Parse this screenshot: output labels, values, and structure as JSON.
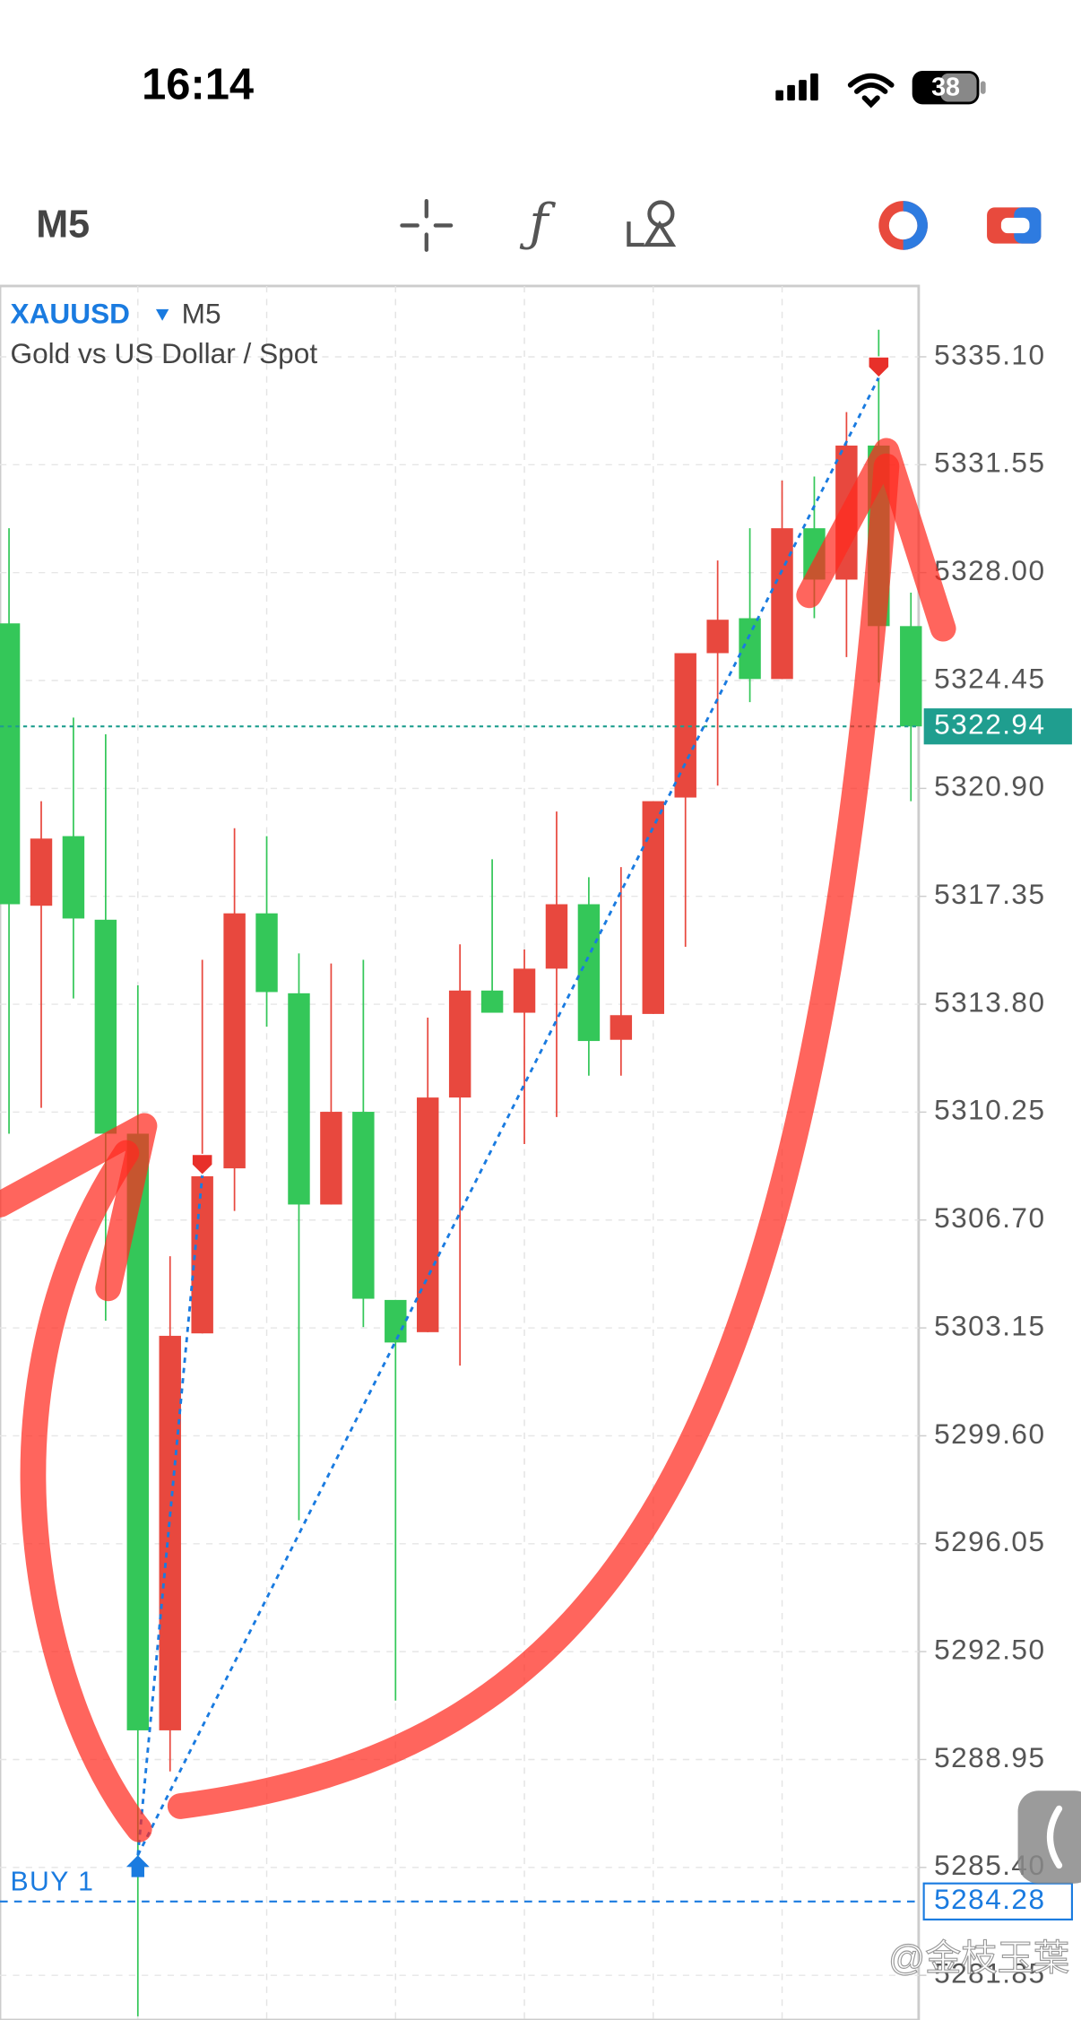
{
  "status_bar": {
    "time": "16:14",
    "battery": "38"
  },
  "toolbar": {
    "timeframe": "M5"
  },
  "chart_data": {
    "type": "candlestick",
    "symbol": "XAUUSD",
    "timeframe": "M5",
    "description": "Gold vs US Dollar / Spot",
    "open": [
      5326.33,
      5317.04,
      5319.33,
      5316.58,
      5309.54,
      5289.91,
      5302.97,
      5308.4,
      5316.79,
      5314.16,
      5307.21,
      5310.26,
      5304.07,
      5303.01,
      5310.73,
      5314.25,
      5313.52,
      5314.97,
      5317.09,
      5312.63,
      5313.48,
      5320.6,
      5325.35,
      5326.5,
      5324.5,
      5329.46,
      5327.77,
      5332.18,
      5326.24
    ],
    "high": [
      5329.46,
      5320.48,
      5323.23,
      5322.68,
      5314.42,
      5305.51,
      5315.26,
      5319.59,
      5319.33,
      5315.47,
      5315.14,
      5315.26,
      5304.07,
      5313.36,
      5315.77,
      5318.57,
      5315.6,
      5320.14,
      5317.98,
      5318.31,
      5320.48,
      5325.35,
      5328.4,
      5329.46,
      5331.03,
      5331.16,
      5333.28,
      5335.99,
      5327.34
    ],
    "low": [
      5309.54,
      5310.39,
      5313.99,
      5303.39,
      5280.5,
      5288.56,
      5302.97,
      5307.0,
      5313.06,
      5296.82,
      5307.21,
      5303.18,
      5290.89,
      5303.01,
      5301.91,
      5313.52,
      5309.2,
      5310.09,
      5311.45,
      5311.45,
      5313.48,
      5315.69,
      5320.99,
      5323.74,
      5324.5,
      5326.5,
      5325.22,
      5324.38,
      5320.48
    ],
    "close": [
      5317.09,
      5319.25,
      5316.62,
      5309.54,
      5289.91,
      5302.89,
      5308.14,
      5316.79,
      5314.2,
      5307.21,
      5310.26,
      5304.11,
      5302.67,
      5310.73,
      5314.25,
      5313.52,
      5314.97,
      5317.09,
      5312.59,
      5313.44,
      5320.48,
      5325.35,
      5326.45,
      5324.5,
      5329.46,
      5327.77,
      5332.18,
      5326.24,
      5322.94
    ],
    "up_color": "#e8483e",
    "down_color": "#34c759",
    "ylim": [
      5280.38,
      5337.43
    ],
    "yticks": [
      {
        "value": 5335.1,
        "label": "5335.10"
      },
      {
        "value": 5331.55,
        "label": "5331.55"
      },
      {
        "value": 5328.0,
        "label": "5328.00"
      },
      {
        "value": 5324.45,
        "label": "5324.45"
      },
      {
        "value": 5320.9,
        "label": "5320.90"
      },
      {
        "value": 5317.35,
        "label": "5317.35"
      },
      {
        "value": 5313.8,
        "label": "5313.80"
      },
      {
        "value": 5310.25,
        "label": "5310.25"
      },
      {
        "value": 5306.7,
        "label": "5306.70"
      },
      {
        "value": 5303.15,
        "label": "5303.15"
      },
      {
        "value": 5299.6,
        "label": "5299.60"
      },
      {
        "value": 5296.05,
        "label": "5296.05"
      },
      {
        "value": 5292.5,
        "label": "5292.50"
      },
      {
        "value": 5288.95,
        "label": "5288.95"
      },
      {
        "value": 5285.4,
        "label": "5285.40"
      },
      {
        "value": 5281.85,
        "label": "5281.85"
      }
    ],
    "grid": true,
    "current_price": 5322.94,
    "current_price_color": "#1f9e8f",
    "position": {
      "label": "BUY 1",
      "price": 5284.28,
      "color": "#1a7be0"
    },
    "trades": [
      {
        "entry": 5285.8,
        "exit": 5308.18
      },
      {
        "entry": 5285.8,
        "exit": 5334.42
      }
    ]
  },
  "watermark": "@金枝玉葉"
}
